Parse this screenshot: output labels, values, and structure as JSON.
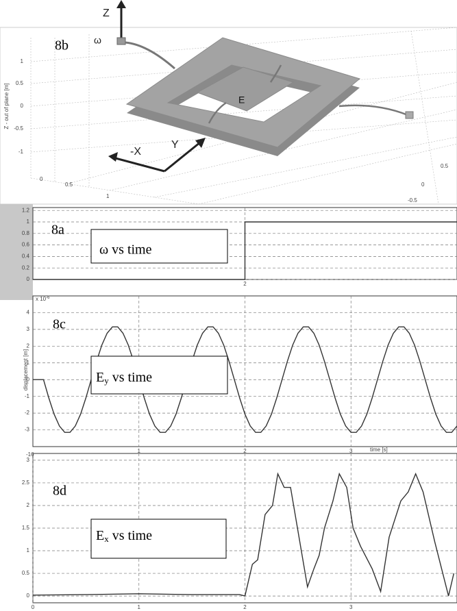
{
  "figure_3d": {
    "panel_label": "8b",
    "z_axis_arrow": "Z",
    "omega": "ω",
    "e_label": "E",
    "x_axis_arrow": "-X",
    "y_axis_arrow": "Y",
    "z_axis_title": "Z - out of plane [m]",
    "z_ticks": [
      "1",
      "0.5",
      "0",
      "-0.5",
      "-1"
    ],
    "x_ticks": [
      "0",
      "0.5",
      "1"
    ],
    "y_ticks": [
      "0.5",
      "0",
      "-0.5"
    ]
  },
  "chart_data": [
    {
      "type": "line",
      "panel_label": "8a",
      "annotation": "ω vs time",
      "x": [
        0,
        2,
        2,
        4
      ],
      "series": [
        {
          "color": "#333333",
          "values": [
            0,
            0,
            1,
            1
          ]
        }
      ],
      "xlim": [
        0,
        4
      ],
      "xticks": [
        2
      ],
      "ylim": [
        0,
        1.25
      ],
      "yticks": [
        0,
        0.2,
        0.4,
        0.6,
        0.8,
        1,
        1.2
      ],
      "grid": true
    },
    {
      "type": "line",
      "panel_label": "8c",
      "annotation": {
        "symbol": "E",
        "subscript": "y",
        "text": " vs time"
      },
      "y_exponent": {
        "base": "x 10",
        "exponent": "-6"
      },
      "y_label": "displacement [m]",
      "x_label": "time [s]",
      "x": [
        0,
        0.05,
        0.1,
        0.15,
        0.2,
        0.25,
        0.3,
        0.35,
        0.4,
        0.45,
        0.5,
        0.55,
        0.6,
        0.65,
        0.7,
        0.75,
        0.8,
        0.85,
        0.9,
        0.95,
        1,
        1.05,
        1.1,
        1.15,
        1.2,
        1.25,
        1.3,
        1.35,
        1.4,
        1.45,
        1.5,
        1.55,
        1.6,
        1.65,
        1.7,
        1.75,
        1.8,
        1.85,
        1.9,
        1.95,
        2,
        2.05,
        2.1,
        2.15,
        2.2,
        2.25,
        2.3,
        2.35,
        2.4,
        2.45,
        2.5,
        2.55,
        2.6,
        2.65,
        2.7,
        2.75,
        2.8,
        2.85,
        2.9,
        2.95,
        3,
        3.05,
        3.1,
        3.15,
        3.2,
        3.25,
        3.3,
        3.35,
        3.4,
        3.45,
        3.5,
        3.55,
        3.6,
        3.65,
        3.7,
        3.75,
        3.8,
        3.85,
        3.9,
        3.95,
        4
      ],
      "series": [
        {
          "color": "#333333",
          "values": [
            0,
            0,
            0,
            -1.09,
            -2.06,
            -2.77,
            -3.15,
            -3.15,
            -2.77,
            -2.06,
            -1.09,
            0,
            1.09,
            2.06,
            2.77,
            3.15,
            3.15,
            2.77,
            2.06,
            1.09,
            0,
            -1.09,
            -2.06,
            -2.77,
            -3.15,
            -3.15,
            -2.77,
            -2.06,
            -1.09,
            0,
            1.09,
            2.06,
            2.77,
            3.15,
            3.15,
            2.77,
            2.06,
            1.09,
            0,
            -1.09,
            -2.06,
            -2.77,
            -3.15,
            -3.15,
            -2.77,
            -2.06,
            -1.09,
            0,
            1.09,
            2.06,
            2.77,
            3.15,
            3.15,
            2.77,
            2.06,
            1.09,
            0,
            -1.09,
            -2.06,
            -2.77,
            -3.15,
            -3.15,
            -2.77,
            -2.06,
            -1.09,
            0,
            1.09,
            2.06,
            2.77,
            3.15,
            3.15,
            2.77,
            2.06,
            1.09,
            0,
            -1.09,
            -2.06,
            -2.77,
            -3.15,
            -3.15,
            -2.77
          ]
        }
      ],
      "xlim": [
        0,
        4
      ],
      "xticks": [
        1,
        2,
        3
      ],
      "ylim": [
        -4,
        5
      ],
      "yticks": [
        -3,
        -2,
        -1,
        0,
        1,
        2,
        3,
        4
      ],
      "grid": true
    },
    {
      "type": "line",
      "panel_label": "8d",
      "annotation": {
        "symbol": "E",
        "subscript": "x",
        "text": " vs time"
      },
      "y_exponent": {
        "exponent": "-16"
      },
      "x": [
        0,
        0.5,
        1,
        1.5,
        1.95,
        2,
        2.07,
        2.12,
        2.19,
        2.26,
        2.31,
        2.37,
        2.43,
        2.51,
        2.59,
        2.65,
        2.7,
        2.75,
        2.83,
        2.89,
        2.96,
        3.02,
        3.09,
        3.2,
        3.28,
        3.36,
        3.47,
        3.54,
        3.61,
        3.68,
        3.79,
        3.92,
        3.97
      ],
      "series": [
        {
          "color": "#333333",
          "values": [
            0.02,
            0.03,
            0.05,
            0.03,
            0.03,
            0,
            0.7,
            0.8,
            1.8,
            2.0,
            2.7,
            2.4,
            2.4,
            1.3,
            0.2,
            0.6,
            0.9,
            1.5,
            2.1,
            2.7,
            2.4,
            1.5,
            1.1,
            0.6,
            0.1,
            1.3,
            2.1,
            2.3,
            2.7,
            2.3,
            1.2,
            0.0,
            0.5
          ]
        }
      ],
      "xlim": [
        0,
        4
      ],
      "xticks": [
        0,
        1,
        2,
        3
      ],
      "ylim": [
        -0.15,
        3.15
      ],
      "yticks": [
        0,
        0.5,
        1,
        1.5,
        2,
        2.5,
        3
      ],
      "grid": true
    }
  ]
}
